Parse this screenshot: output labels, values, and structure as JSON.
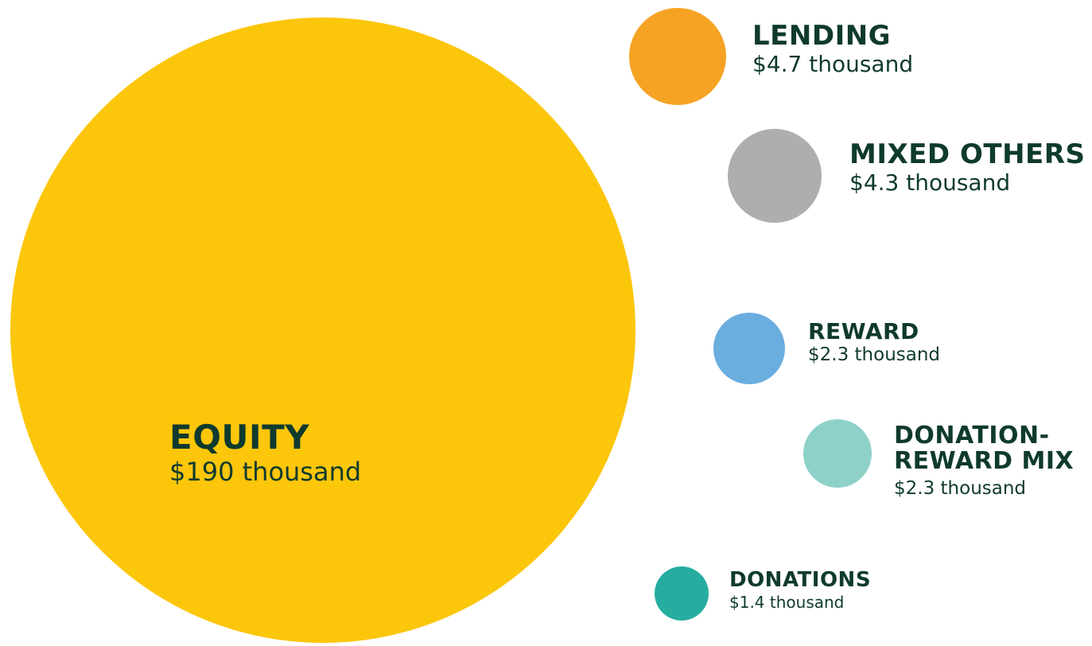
{
  "chart_data": {
    "type": "bubble",
    "unit": "thousand USD",
    "series": [
      {
        "name": "EQUITY",
        "value": 190,
        "value_label": "$190 thousand",
        "color": "#fcc60a"
      },
      {
        "name": "LENDING",
        "value": 4.7,
        "value_label": "$4.7 thousand",
        "color": "#f6a323"
      },
      {
        "name": "MIXED OTHERS",
        "value": 4.3,
        "value_label": "$4.3 thousand",
        "color": "#adafaf"
      },
      {
        "name": "REWARD",
        "value": 2.3,
        "value_label": "$2.3 thousand",
        "color": "#6aaddf"
      },
      {
        "name_line1": "DONATION-",
        "name_line2": "REWARD MIX",
        "name": "DONATION-REWARD MIX",
        "value": 2.3,
        "value_label": "$2.3 thousand",
        "color": "#8ed1c9"
      },
      {
        "name": "DONATIONS",
        "value": 1.4,
        "value_label": "$1.4 thousand",
        "color": "#26ada0"
      }
    ]
  },
  "colors": {
    "text": "#0f3a2e",
    "background": "#ffffff"
  }
}
